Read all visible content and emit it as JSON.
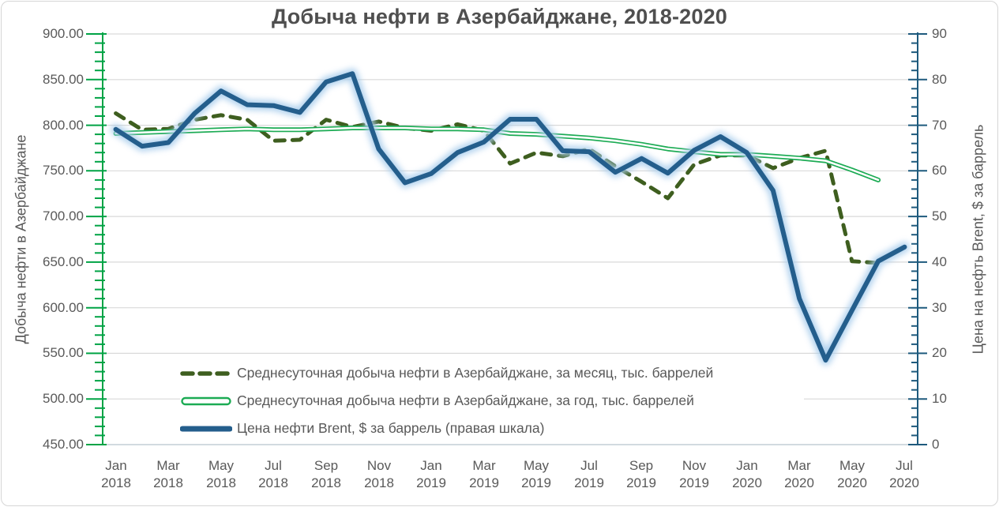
{
  "title": "Добыча нефти в Азербайджане, 2018-2020",
  "left_axis": {
    "title": "Добыча нефти в Азербайджане",
    "min": 450,
    "max": 900,
    "major_step": 50,
    "minor_step": 10,
    "tick_labels": [
      "900.00",
      "850.00",
      "800.00",
      "750.00",
      "700.00",
      "650.00",
      "600.00",
      "550.00",
      "500.00",
      "450.00"
    ],
    "color": "#00a345"
  },
  "right_axis": {
    "title": "Цена на нефть Brent, $ за баррель",
    "min": 0,
    "max": 90,
    "major_step": 10,
    "minor_step": 2,
    "tick_labels": [
      "90",
      "80",
      "70",
      "60",
      "50",
      "40",
      "30",
      "20",
      "10",
      "0"
    ],
    "color": "#1e5a7d"
  },
  "x_axis": {
    "ticks": [
      {
        "i": 0,
        "month": "Jan",
        "year": "2018"
      },
      {
        "i": 2,
        "month": "Mar",
        "year": "2018"
      },
      {
        "i": 4,
        "month": "May",
        "year": "2018"
      },
      {
        "i": 6,
        "month": "Jul",
        "year": "2018"
      },
      {
        "i": 8,
        "month": "Sep",
        "year": "2018"
      },
      {
        "i": 10,
        "month": "Nov",
        "year": "2018"
      },
      {
        "i": 12,
        "month": "Jan",
        "year": "2019"
      },
      {
        "i": 14,
        "month": "Mar",
        "year": "2019"
      },
      {
        "i": 16,
        "month": "May",
        "year": "2019"
      },
      {
        "i": 18,
        "month": "Jul",
        "year": "2019"
      },
      {
        "i": 20,
        "month": "Sep",
        "year": "2019"
      },
      {
        "i": 22,
        "month": "Nov",
        "year": "2019"
      },
      {
        "i": 24,
        "month": "Jan",
        "year": "2020"
      },
      {
        "i": 26,
        "month": "Mar",
        "year": "2020"
      },
      {
        "i": 28,
        "month": "May",
        "year": "2020"
      },
      {
        "i": 30,
        "month": "Jul",
        "year": "2020"
      }
    ]
  },
  "chart_data": {
    "type": "line",
    "title": "Добыча нефти в Азербайджане, 2018-2020",
    "x": [
      "Jan 2018",
      "Feb 2018",
      "Mar 2018",
      "Apr 2018",
      "May 2018",
      "Jun 2018",
      "Jul 2018",
      "Aug 2018",
      "Sep 2018",
      "Oct 2018",
      "Nov 2018",
      "Dec 2018",
      "Jan 2019",
      "Feb 2019",
      "Mar 2019",
      "Apr 2019",
      "May 2019",
      "Jun 2019",
      "Jul 2019",
      "Aug 2019",
      "Sep 2019",
      "Oct 2019",
      "Nov 2019",
      "Dec 2019",
      "Jan 2020",
      "Feb 2020",
      "Mar 2020",
      "Apr 2020",
      "May 2020",
      "Jun 2020",
      "Jul 2020"
    ],
    "left_lim": [
      450,
      900
    ],
    "right_lim": [
      0,
      90
    ],
    "grid": "horizontal-only",
    "legend_position": "inside-bottom-left",
    "colors": {
      "grid": "#d9d9d9",
      "x_axis_line": "#c3ced6",
      "text": "#595959"
    },
    "series": [
      {
        "name": "Среднесуточная добыча нефти в Азербайджане, за месяц, тыс. баррелей",
        "axis": "left",
        "line": "dashed",
        "color": "#3e5e1f",
        "width": 5,
        "values": [
          813,
          795,
          796,
          806,
          811,
          806,
          783,
          784,
          806,
          798,
          804,
          797,
          794,
          801,
          794,
          758,
          770,
          766,
          774,
          755,
          738,
          720,
          757,
          767,
          767,
          753,
          764,
          772,
          651,
          649,
          null
        ]
      },
      {
        "name": "Среднесуточная добыча нефти в Азербайджане, за год, тыс. баррелей",
        "axis": "left",
        "line": "double",
        "color": "#1cab54",
        "inner_color": "#ffffff",
        "width": 6,
        "values": [
          791,
          792,
          793,
          794,
          795,
          796,
          795,
          795,
          796,
          797,
          797,
          797,
          796,
          796,
          795,
          791,
          790,
          788,
          786,
          783,
          779,
          774,
          771,
          768,
          768,
          766,
          764,
          761,
          751,
          740,
          null
        ]
      },
      {
        "name": "Цена нефти Brent, $ за баррель (правая шкала)",
        "axis": "right",
        "line": "solid-glow",
        "color": "#245e8c",
        "glow_color": "#a9cdec",
        "width": 6,
        "values": [
          69.1,
          65.4,
          66.2,
          72.6,
          77.5,
          74.5,
          74.3,
          72.8,
          79.5,
          81.3,
          64.8,
          57.4,
          59.4,
          64.0,
          66.3,
          71.3,
          71.3,
          64.4,
          64.2,
          59.7,
          62.7,
          59.5,
          64.5,
          67.5,
          64.0,
          55.7,
          32.0,
          18.5,
          29.4,
          40.2,
          43.3
        ]
      }
    ]
  }
}
